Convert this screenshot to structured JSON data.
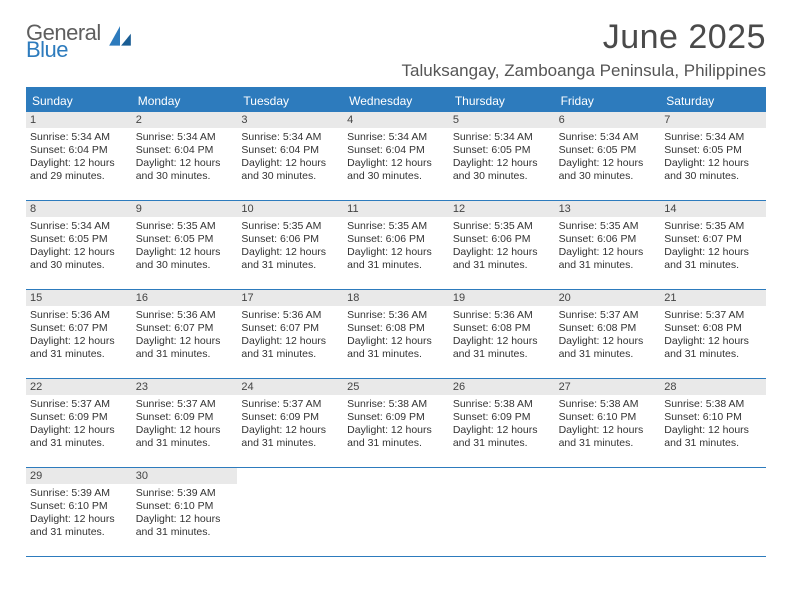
{
  "brand": {
    "general": "General",
    "blue": "Blue"
  },
  "colors": {
    "accent": "#2d7bbd",
    "datebar_bg": "#e9e9e9",
    "text": "#333333",
    "header_text": "#4a4a4a"
  },
  "title": {
    "month": "June 2025",
    "location": "Taluksangay, Zamboanga Peninsula, Philippines"
  },
  "day_names": [
    "Sunday",
    "Monday",
    "Tuesday",
    "Wednesday",
    "Thursday",
    "Friday",
    "Saturday"
  ],
  "weeks": [
    [
      {
        "date": "1",
        "sunrise": "5:34 AM",
        "sunset": "6:04 PM",
        "daylight": "12 hours and 29 minutes."
      },
      {
        "date": "2",
        "sunrise": "5:34 AM",
        "sunset": "6:04 PM",
        "daylight": "12 hours and 30 minutes."
      },
      {
        "date": "3",
        "sunrise": "5:34 AM",
        "sunset": "6:04 PM",
        "daylight": "12 hours and 30 minutes."
      },
      {
        "date": "4",
        "sunrise": "5:34 AM",
        "sunset": "6:04 PM",
        "daylight": "12 hours and 30 minutes."
      },
      {
        "date": "5",
        "sunrise": "5:34 AM",
        "sunset": "6:05 PM",
        "daylight": "12 hours and 30 minutes."
      },
      {
        "date": "6",
        "sunrise": "5:34 AM",
        "sunset": "6:05 PM",
        "daylight": "12 hours and 30 minutes."
      },
      {
        "date": "7",
        "sunrise": "5:34 AM",
        "sunset": "6:05 PM",
        "daylight": "12 hours and 30 minutes."
      }
    ],
    [
      {
        "date": "8",
        "sunrise": "5:34 AM",
        "sunset": "6:05 PM",
        "daylight": "12 hours and 30 minutes."
      },
      {
        "date": "9",
        "sunrise": "5:35 AM",
        "sunset": "6:05 PM",
        "daylight": "12 hours and 30 minutes."
      },
      {
        "date": "10",
        "sunrise": "5:35 AM",
        "sunset": "6:06 PM",
        "daylight": "12 hours and 31 minutes."
      },
      {
        "date": "11",
        "sunrise": "5:35 AM",
        "sunset": "6:06 PM",
        "daylight": "12 hours and 31 minutes."
      },
      {
        "date": "12",
        "sunrise": "5:35 AM",
        "sunset": "6:06 PM",
        "daylight": "12 hours and 31 minutes."
      },
      {
        "date": "13",
        "sunrise": "5:35 AM",
        "sunset": "6:06 PM",
        "daylight": "12 hours and 31 minutes."
      },
      {
        "date": "14",
        "sunrise": "5:35 AM",
        "sunset": "6:07 PM",
        "daylight": "12 hours and 31 minutes."
      }
    ],
    [
      {
        "date": "15",
        "sunrise": "5:36 AM",
        "sunset": "6:07 PM",
        "daylight": "12 hours and 31 minutes."
      },
      {
        "date": "16",
        "sunrise": "5:36 AM",
        "sunset": "6:07 PM",
        "daylight": "12 hours and 31 minutes."
      },
      {
        "date": "17",
        "sunrise": "5:36 AM",
        "sunset": "6:07 PM",
        "daylight": "12 hours and 31 minutes."
      },
      {
        "date": "18",
        "sunrise": "5:36 AM",
        "sunset": "6:08 PM",
        "daylight": "12 hours and 31 minutes."
      },
      {
        "date": "19",
        "sunrise": "5:36 AM",
        "sunset": "6:08 PM",
        "daylight": "12 hours and 31 minutes."
      },
      {
        "date": "20",
        "sunrise": "5:37 AM",
        "sunset": "6:08 PM",
        "daylight": "12 hours and 31 minutes."
      },
      {
        "date": "21",
        "sunrise": "5:37 AM",
        "sunset": "6:08 PM",
        "daylight": "12 hours and 31 minutes."
      }
    ],
    [
      {
        "date": "22",
        "sunrise": "5:37 AM",
        "sunset": "6:09 PM",
        "daylight": "12 hours and 31 minutes."
      },
      {
        "date": "23",
        "sunrise": "5:37 AM",
        "sunset": "6:09 PM",
        "daylight": "12 hours and 31 minutes."
      },
      {
        "date": "24",
        "sunrise": "5:37 AM",
        "sunset": "6:09 PM",
        "daylight": "12 hours and 31 minutes."
      },
      {
        "date": "25",
        "sunrise": "5:38 AM",
        "sunset": "6:09 PM",
        "daylight": "12 hours and 31 minutes."
      },
      {
        "date": "26",
        "sunrise": "5:38 AM",
        "sunset": "6:09 PM",
        "daylight": "12 hours and 31 minutes."
      },
      {
        "date": "27",
        "sunrise": "5:38 AM",
        "sunset": "6:10 PM",
        "daylight": "12 hours and 31 minutes."
      },
      {
        "date": "28",
        "sunrise": "5:38 AM",
        "sunset": "6:10 PM",
        "daylight": "12 hours and 31 minutes."
      }
    ],
    [
      {
        "date": "29",
        "sunrise": "5:39 AM",
        "sunset": "6:10 PM",
        "daylight": "12 hours and 31 minutes."
      },
      {
        "date": "30",
        "sunrise": "5:39 AM",
        "sunset": "6:10 PM",
        "daylight": "12 hours and 31 minutes."
      },
      null,
      null,
      null,
      null,
      null
    ]
  ],
  "labels": {
    "sunrise": "Sunrise:",
    "sunset": "Sunset:",
    "daylight": "Daylight:"
  }
}
